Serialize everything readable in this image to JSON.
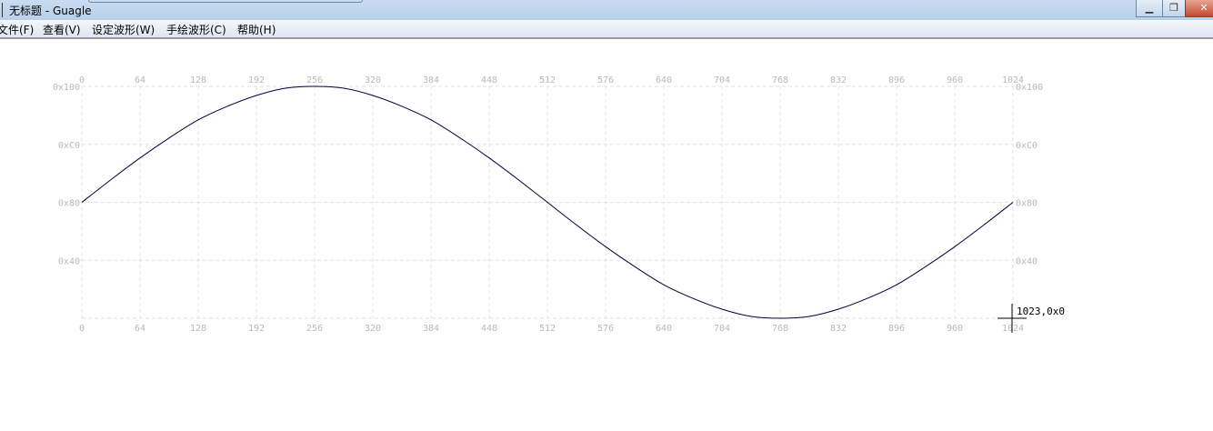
{
  "window": {
    "title": "无标题 - Guagle",
    "minimize_icon": "minimize-icon",
    "restore_icon": "restore-icon",
    "close_icon": "close-icon"
  },
  "menu": [
    {
      "label": "文件(F)"
    },
    {
      "label": "查看(V)"
    },
    {
      "label": "设定波形(W)"
    },
    {
      "label": "手绘波形(C)"
    },
    {
      "label": "帮助(H)"
    }
  ],
  "cursor": {
    "readout": "1023,0x0"
  },
  "chart_data": {
    "type": "line",
    "xlim": [
      0,
      1024
    ],
    "ylim": [
      0,
      256
    ],
    "grid": true,
    "x_ticks": [
      "0",
      "64",
      "128",
      "192",
      "256",
      "320",
      "384",
      "448",
      "512",
      "576",
      "640",
      "704",
      "768",
      "832",
      "896",
      "960",
      "1024"
    ],
    "y_ticks": [
      "0x100",
      "0xC0",
      "0x80",
      "0x40"
    ],
    "line_color": "#000040",
    "x": [
      0,
      32,
      64,
      96,
      128,
      160,
      192,
      224,
      256,
      288,
      320,
      352,
      384,
      416,
      448,
      480,
      512,
      544,
      576,
      608,
      640,
      672,
      704,
      736,
      768,
      800,
      832,
      864,
      896,
      928,
      960,
      992,
      1024
    ],
    "y": [
      128,
      153,
      177,
      199,
      219,
      234,
      246,
      254,
      256,
      254,
      246,
      234,
      219,
      199,
      177,
      153,
      128,
      103,
      79,
      57,
      37,
      22,
      10,
      2,
      0,
      2,
      10,
      22,
      37,
      57,
      79,
      103,
      128
    ]
  }
}
